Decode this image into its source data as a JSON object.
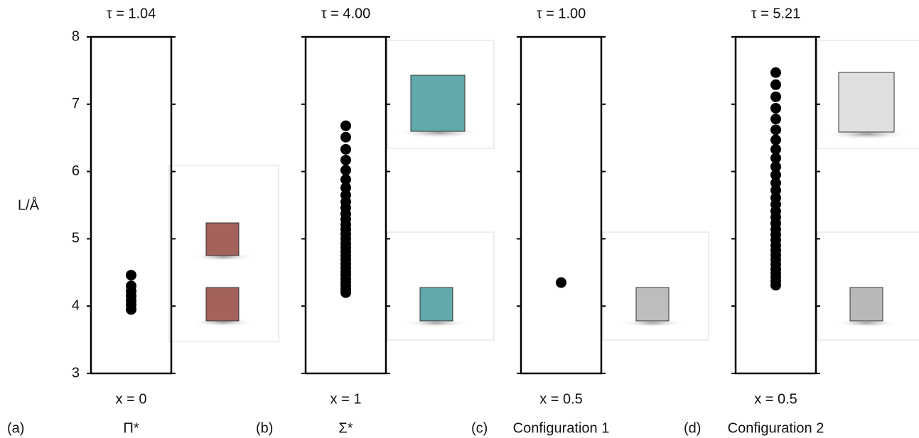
{
  "chart_data": [
    {
      "type": "strip",
      "title": "τ = 1.04",
      "xlabel": "x = 0",
      "panel": "(a)",
      "name": "Π*",
      "ylabel": "L/Å",
      "values": [
        4.46,
        4.3,
        4.22,
        4.15,
        4.08,
        4.02,
        3.95
      ],
      "color": "#000000",
      "ylim": [
        3,
        8
      ],
      "yticks": [
        3,
        4,
        5,
        6,
        7,
        8
      ]
    },
    {
      "type": "strip",
      "title": "τ = 4.00",
      "xlabel": "x = 1",
      "panel": "(b)",
      "name": "Σ*",
      "values": [
        6.68,
        6.51,
        6.33,
        6.17,
        6.02,
        5.88,
        5.76,
        5.65,
        5.55,
        5.46,
        5.37,
        5.29,
        5.21,
        5.14,
        5.07,
        5.0,
        4.93,
        4.87,
        4.81,
        4.75,
        4.69,
        4.63,
        4.57,
        4.51,
        4.46,
        4.4,
        4.35,
        4.3,
        4.25,
        4.2
      ],
      "color": "#000000",
      "ylim": [
        3,
        8
      ],
      "yticks": [
        3,
        4,
        5,
        6,
        7,
        8
      ]
    },
    {
      "type": "strip",
      "title": "τ = 1.00",
      "xlabel": "x = 0.5",
      "panel": "(c)",
      "name": "Configuration 1",
      "values": [
        4.35
      ],
      "color": "#000000",
      "ylim": [
        3,
        8
      ],
      "yticks": [
        3,
        4,
        5,
        6,
        7,
        8
      ]
    },
    {
      "type": "strip",
      "title": "τ = 5.21",
      "xlabel": "x = 0.5",
      "panel": "(d)",
      "name": "Configuration 2",
      "values": [
        7.47,
        7.29,
        7.11,
        6.94,
        6.78,
        6.62,
        6.47,
        6.33,
        6.2,
        6.07,
        5.95,
        5.83,
        5.72,
        5.61,
        5.51,
        5.41,
        5.32,
        5.23,
        5.14,
        5.06,
        4.98,
        4.9,
        4.83,
        4.76,
        4.69,
        4.62,
        4.55,
        4.49,
        4.43,
        4.37,
        4.31
      ],
      "color": "#000000",
      "ylim": [
        3,
        8
      ],
      "yticks": [
        3,
        4,
        5,
        6,
        7,
        8
      ]
    }
  ]
}
